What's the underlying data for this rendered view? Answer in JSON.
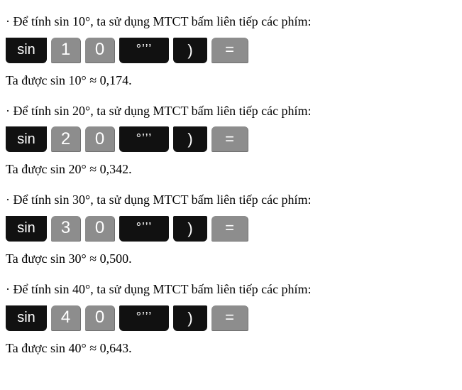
{
  "colors": {
    "page_bg": "#ffffff",
    "text": "#000000",
    "dark_key_bg": "#111111",
    "gray_key_bg": "#8d8d8d",
    "key_text": "#ffffff"
  },
  "typography": {
    "body_font": "Times New Roman",
    "body_size_pt": 14,
    "key_font": "Arial"
  },
  "key_glyphs": {
    "sin": "sin",
    "dms": "°’’’",
    "close_paren": ")",
    "eq": "="
  },
  "blocks": [
    {
      "instruction_prefix": "· Để tính sin 10°, ta sử dụng MTCT bấm liên tiếp các phím:",
      "digits": [
        "1",
        "0"
      ],
      "result": "Ta được sin 10° ≈ 0,174."
    },
    {
      "instruction_prefix": "· Để tính sin 20°, ta sử dụng MTCT bấm liên tiếp các phím:",
      "digits": [
        "2",
        "0"
      ],
      "result": "Ta được sin 20° ≈ 0,342."
    },
    {
      "instruction_prefix": "· Để tính sin 30°, ta sử dụng MTCT bấm liên tiếp các phím:",
      "digits": [
        "3",
        "0"
      ],
      "result": "Ta được sin 30° ≈ 0,500."
    },
    {
      "instruction_prefix": "· Để tính sin 40°, ta sử dụng MTCT bấm liên tiếp các phím:",
      "digits": [
        "4",
        "0"
      ],
      "result": "Ta được sin 40° ≈ 0,643."
    }
  ]
}
